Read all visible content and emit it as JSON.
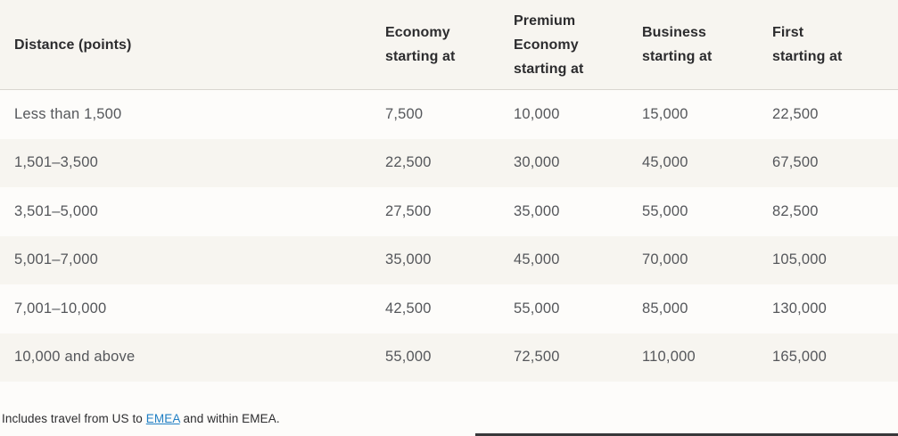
{
  "colors": {
    "header_bg": "#f7f5f0",
    "stripe_bg": "#f7f5f0",
    "divider": "#d9d6d0",
    "header_text": "#2c2c2e",
    "cell_text": "#55575b",
    "footnote_text": "#2d2d2f",
    "link": "#1f7fc4",
    "bottom_bar": "#38383a"
  },
  "table": {
    "headers": [
      {
        "label": "Distance (points)",
        "lines": [
          "Distance (points)"
        ]
      },
      {
        "label": "Economy starting at",
        "lines": [
          "Economy",
          "starting at"
        ]
      },
      {
        "label": "Premium Economy starting at",
        "lines": [
          "Premium",
          "Economy",
          "starting at"
        ]
      },
      {
        "label": "Business starting at",
        "lines": [
          "Business",
          "starting at"
        ]
      },
      {
        "label": "First starting at",
        "lines": [
          "First",
          "starting at"
        ]
      }
    ],
    "rows": [
      [
        "Less than 1,500",
        "7,500",
        "10,000",
        "15,000",
        "22,500"
      ],
      [
        "1,501–3,500",
        "22,500",
        "30,000",
        "45,000",
        "67,500"
      ],
      [
        "3,501–5,000",
        "27,500",
        "35,000",
        "55,000",
        "82,500"
      ],
      [
        "5,001–7,000",
        "35,000",
        "45,000",
        "70,000",
        "105,000"
      ],
      [
        "7,001–10,000",
        "42,500",
        "55,000",
        "85,000",
        "130,000"
      ],
      [
        "10,000 and above",
        "55,000",
        "72,500",
        "110,000",
        "165,000"
      ]
    ]
  },
  "footnote": {
    "text_before_link": "Includes travel from US to ",
    "link_text": "EMEA",
    "text_after_link": " and within EMEA."
  }
}
